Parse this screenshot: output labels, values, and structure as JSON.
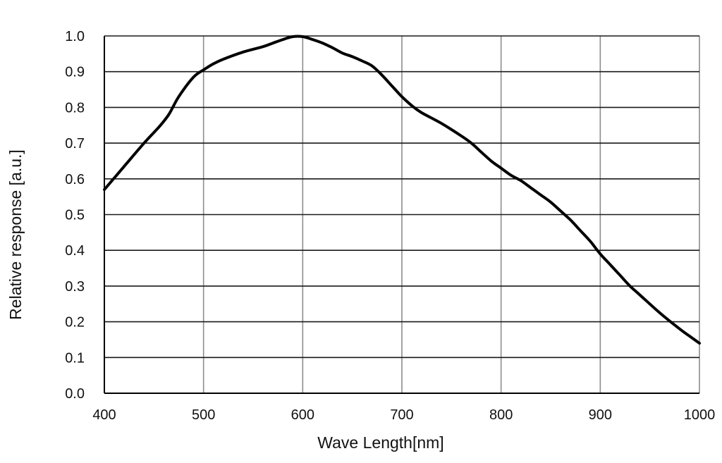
{
  "chart_data": {
    "type": "line",
    "title": "",
    "xlabel": "Wave Length[nm]",
    "ylabel": "Relative response [a.u.]",
    "xlim": [
      400,
      1000
    ],
    "ylim": [
      0.0,
      1.0
    ],
    "x_ticks": [
      400,
      500,
      600,
      700,
      800,
      900,
      1000
    ],
    "x_tick_labels": [
      "400",
      "500",
      "600",
      "700",
      "800",
      "900",
      "1000"
    ],
    "y_ticks": [
      0.0,
      0.1,
      0.2,
      0.3,
      0.4,
      0.5,
      0.6,
      0.7,
      0.8,
      0.9,
      1.0
    ],
    "y_tick_labels": [
      "0.0",
      "0.1",
      "0.2",
      "0.3",
      "0.4",
      "0.5",
      "0.6",
      "0.7",
      "0.8",
      "0.9",
      "1.0"
    ],
    "grid": true,
    "legend": null,
    "series": [
      {
        "name": "Relative response",
        "color": "#000000",
        "x": [
          400,
          420,
          440,
          455,
          465,
          475,
          490,
          500,
          510,
          520,
          540,
          560,
          570,
          580,
          590,
          600,
          610,
          620,
          630,
          640,
          650,
          660,
          670,
          680,
          690,
          700,
          710,
          720,
          740,
          760,
          770,
          780,
          790,
          800,
          810,
          820,
          830,
          840,
          850,
          860,
          870,
          880,
          890,
          900,
          910,
          920,
          930,
          940,
          960,
          980,
          990,
          1000
        ],
        "values": [
          0.57,
          0.635,
          0.7,
          0.745,
          0.78,
          0.83,
          0.885,
          0.905,
          0.922,
          0.935,
          0.955,
          0.97,
          0.98,
          0.99,
          0.998,
          0.998,
          0.99,
          0.98,
          0.967,
          0.952,
          0.942,
          0.93,
          0.916,
          0.89,
          0.86,
          0.83,
          0.805,
          0.785,
          0.755,
          0.72,
          0.7,
          0.675,
          0.65,
          0.63,
          0.61,
          0.595,
          0.575,
          0.555,
          0.535,
          0.51,
          0.485,
          0.455,
          0.425,
          0.39,
          0.36,
          0.33,
          0.3,
          0.275,
          0.225,
          0.18,
          0.16,
          0.14
        ]
      }
    ]
  },
  "colors": {
    "background": "#ffffff",
    "h_grid": "#1a1a1a",
    "v_grid": "#8c8c8c",
    "axis": "#000000",
    "curve": "#000000",
    "text": "#111111"
  }
}
